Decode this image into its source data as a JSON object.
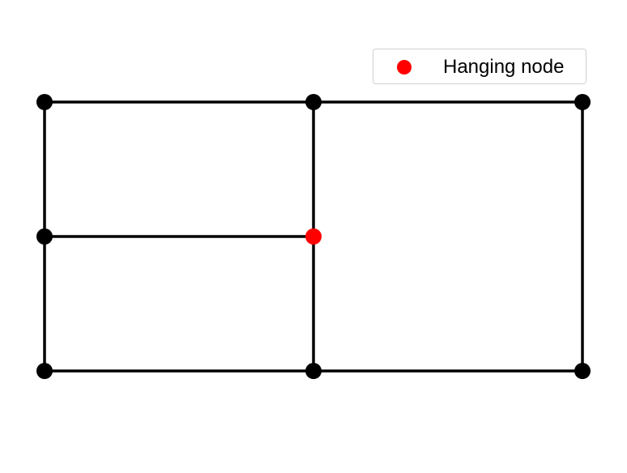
{
  "diagram": {
    "type": "quadrilateral-mesh",
    "nodes": [
      {
        "id": "n00",
        "x": 0,
        "y": 0,
        "hanging": false
      },
      {
        "id": "n10",
        "x": 1,
        "y": 0,
        "hanging": false
      },
      {
        "id": "n20",
        "x": 2,
        "y": 0,
        "hanging": false
      },
      {
        "id": "n0h",
        "x": 0,
        "y": 0.5,
        "hanging": false
      },
      {
        "id": "n1h",
        "x": 1,
        "y": 0.5,
        "hanging": true
      },
      {
        "id": "n01",
        "x": 0,
        "y": 1,
        "hanging": false
      },
      {
        "id": "n11",
        "x": 1,
        "y": 1,
        "hanging": false
      },
      {
        "id": "n21",
        "x": 2,
        "y": 1,
        "hanging": false
      }
    ],
    "edges": [
      [
        "n01",
        "n11"
      ],
      [
        "n11",
        "n21"
      ],
      [
        "n0h",
        "n1h"
      ],
      [
        "n00",
        "n10"
      ],
      [
        "n10",
        "n20"
      ],
      [
        "n00",
        "n0h"
      ],
      [
        "n0h",
        "n01"
      ],
      [
        "n10",
        "n1h"
      ],
      [
        "n1h",
        "n11"
      ],
      [
        "n20",
        "n21"
      ]
    ],
    "colors": {
      "edge": "#000000",
      "node": "#000000",
      "hanging_node": "#ff0000"
    }
  },
  "legend": {
    "label": "Hanging node",
    "placement": "top-right",
    "marker_color": "#ff0000"
  }
}
